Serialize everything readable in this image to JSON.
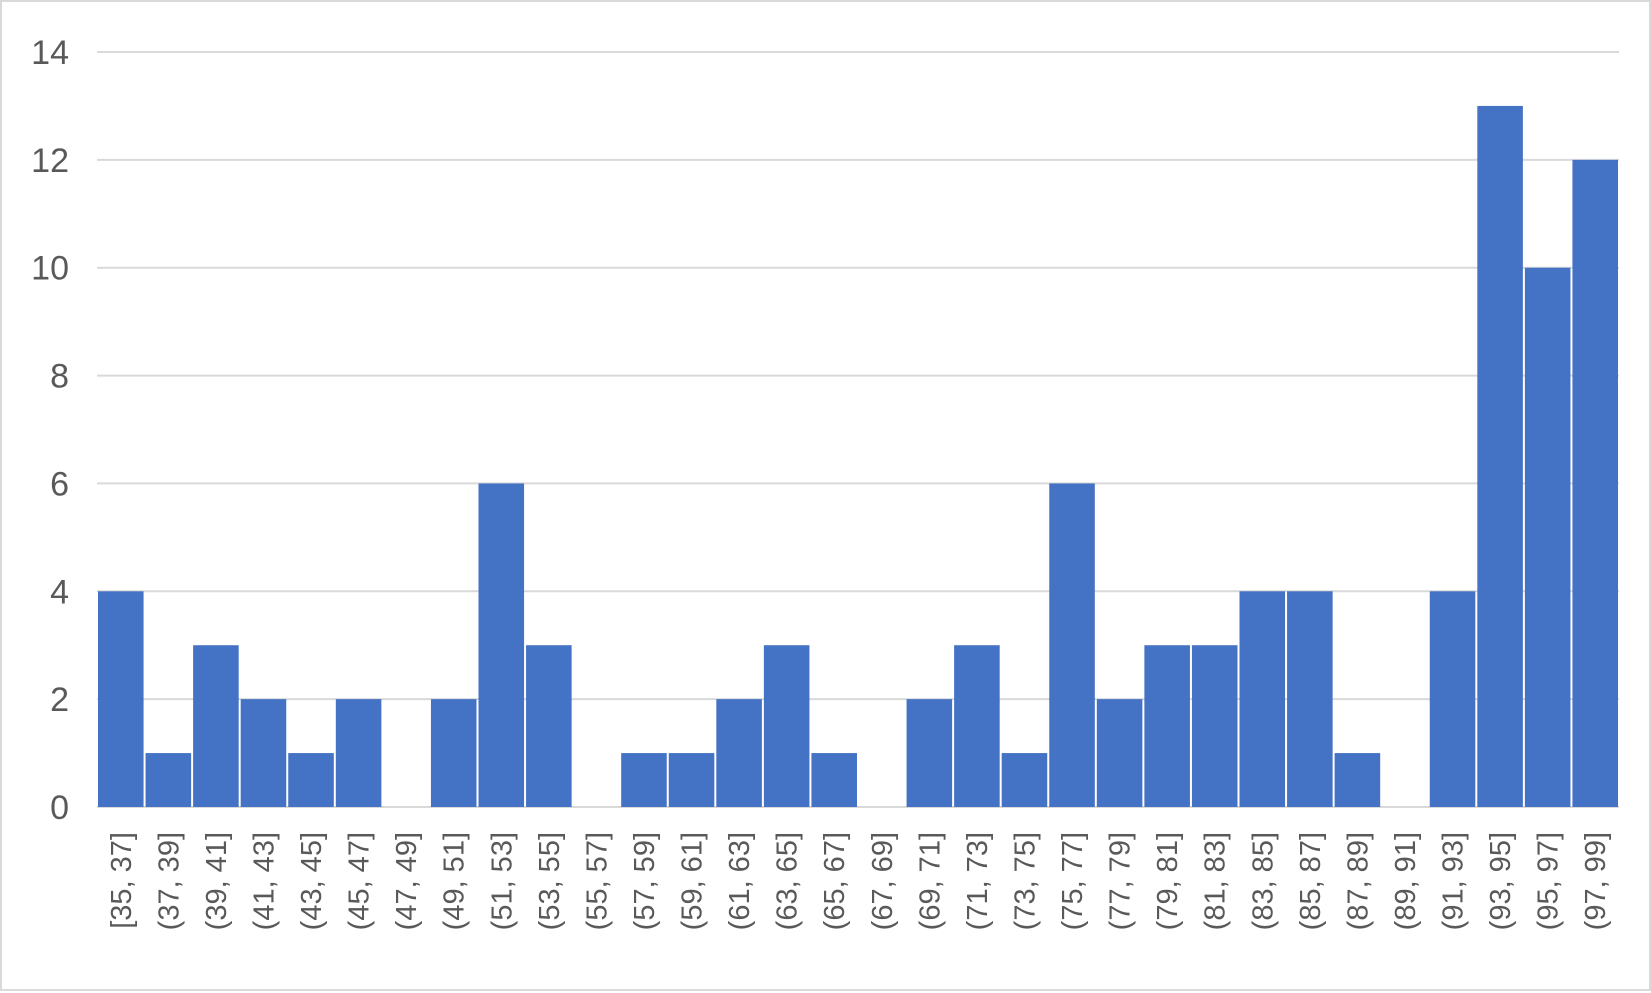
{
  "chart_data": {
    "type": "bar",
    "categories": [
      "[35, 37]",
      "(37, 39]",
      "(39, 41]",
      "(41, 43]",
      "(43, 45]",
      "(45, 47]",
      "(47, 49]",
      "(49, 51]",
      "(51, 53]",
      "(53, 55]",
      "(55, 57]",
      "(57, 59]",
      "(59, 61]",
      "(61, 63]",
      "(63, 65]",
      "(65, 67]",
      "(67, 69]",
      "(69, 71]",
      "(71, 73]",
      "(73, 75]",
      "(75, 77]",
      "(77, 79]",
      "(79, 81]",
      "(81, 83]",
      "(83, 85]",
      "(85, 87]",
      "(87, 89]",
      "(89, 91]",
      "(91, 93]",
      "(93, 95]",
      "(95, 97]",
      "(97, 99]"
    ],
    "values": [
      4,
      1,
      3,
      2,
      1,
      2,
      0,
      2,
      6,
      3,
      0,
      1,
      1,
      2,
      3,
      1,
      0,
      2,
      3,
      1,
      6,
      2,
      3,
      3,
      4,
      4,
      1,
      0,
      4,
      13,
      10,
      12
    ],
    "title": "",
    "xlabel": "",
    "ylabel": "",
    "ylim": [
      0,
      14
    ],
    "yticks": [
      0,
      2,
      4,
      6,
      8,
      10,
      12,
      14
    ],
    "grid": true,
    "legend": "none",
    "bar_color": "#4472c4",
    "gridline_color": "#d9d9d9",
    "text_color": "#595959"
  }
}
